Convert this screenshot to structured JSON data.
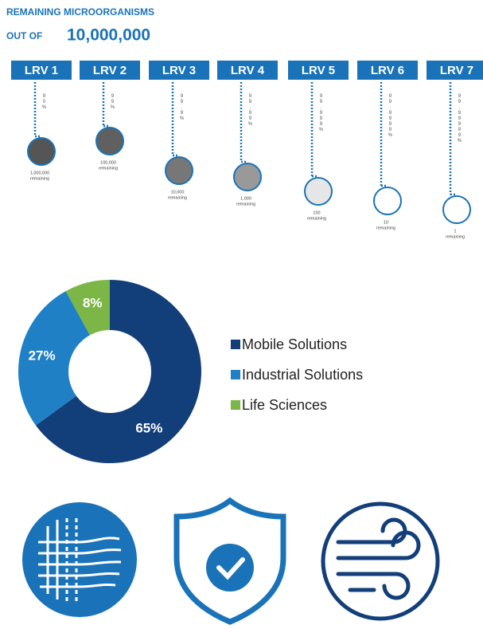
{
  "header": {
    "title": "REMAINING MICROORGANISMS",
    "prefix": "OUT OF",
    "total": "10,000,000"
  },
  "lrv": [
    {
      "label": "LRV 1",
      "percent": "90%",
      "remaining": "1,000,000",
      "note": "remaining"
    },
    {
      "label": "LRV 2",
      "percent": "99%",
      "remaining": "100,000",
      "note": "remaining"
    },
    {
      "label": "LRV 3",
      "percent": "99.9%",
      "remaining": "10,000",
      "note": "remaining"
    },
    {
      "label": "LRV 4",
      "percent": "99.99%",
      "remaining": "1,000",
      "note": "remaining"
    },
    {
      "label": "LRV 5",
      "percent": "99.999%",
      "remaining": "100",
      "note": "remaining"
    },
    {
      "label": "LRV 6",
      "percent": "99.9999%",
      "remaining": "10",
      "note": "remaining"
    },
    {
      "label": "LRV 7",
      "percent": "99.99999%",
      "remaining": "1",
      "note": "remaining"
    }
  ],
  "chart_data": {
    "type": "pie",
    "categories": [
      "Mobile Solutions",
      "Industrial Solutions",
      "Life Sciences"
    ],
    "values": [
      65,
      27,
      8
    ],
    "value_labels": [
      "65%",
      "27%",
      "8%"
    ],
    "colors": [
      "#123e7a",
      "#1f80c6",
      "#7cb646"
    ],
    "donut": true,
    "legend": "right"
  }
}
